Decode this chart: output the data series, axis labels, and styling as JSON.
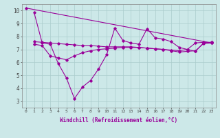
{
  "xlabel": "Windchill (Refroidissement éolien,°C)",
  "background_color": "#cce8e8",
  "line_color": "#990099",
  "xlim": [
    -0.5,
    23.5
  ],
  "ylim": [
    2.5,
    10.5
  ],
  "yticks": [
    3,
    4,
    5,
    6,
    7,
    8,
    9,
    10
  ],
  "xticks": [
    0,
    1,
    2,
    3,
    4,
    5,
    6,
    7,
    8,
    9,
    10,
    11,
    12,
    13,
    14,
    15,
    16,
    17,
    18,
    19,
    20,
    21,
    22,
    23
  ],
  "grid_color": "#aacccc",
  "series": [
    {
      "name": "line_top_diagonal",
      "x": [
        0,
        23
      ],
      "y": [
        10.2,
        7.5
      ]
    },
    {
      "name": "line_flat",
      "x": [
        1,
        2,
        3,
        4,
        5,
        6,
        7,
        8,
        9,
        10,
        11,
        12,
        13,
        14,
        15,
        16,
        17,
        18,
        19,
        20,
        21,
        22,
        23
      ],
      "y": [
        7.6,
        7.55,
        7.5,
        7.45,
        7.4,
        7.35,
        7.3,
        7.3,
        7.25,
        7.2,
        7.2,
        7.2,
        7.2,
        7.15,
        7.1,
        7.05,
        7.0,
        6.95,
        6.9,
        7.0,
        7.5,
        7.55,
        7.55
      ]
    },
    {
      "name": "line_zigzag",
      "x": [
        1,
        2,
        3,
        4,
        5,
        6,
        7,
        8,
        9,
        10,
        11,
        12,
        13,
        14,
        15,
        16,
        17,
        18,
        19,
        20,
        21,
        22,
        23
      ],
      "y": [
        9.85,
        7.5,
        7.4,
        5.9,
        4.8,
        3.2,
        4.1,
        4.6,
        5.5,
        6.6,
        8.65,
        7.7,
        7.5,
        7.4,
        8.6,
        7.9,
        7.8,
        7.6,
        7.15,
        7.0,
        6.85,
        7.5,
        7.55
      ]
    },
    {
      "name": "line_smooth_bottom",
      "x": [
        1,
        2,
        3,
        4,
        5,
        6,
        7,
        8,
        9,
        10,
        11,
        12,
        13,
        14,
        15,
        16,
        17,
        18,
        19,
        20,
        21,
        22,
        23
      ],
      "y": [
        7.4,
        7.3,
        6.5,
        6.35,
        6.2,
        6.5,
        6.75,
        6.9,
        7.0,
        7.05,
        7.1,
        7.15,
        7.15,
        7.15,
        7.1,
        7.05,
        7.0,
        6.9,
        6.8,
        6.85,
        6.9,
        7.45,
        7.5
      ]
    }
  ]
}
